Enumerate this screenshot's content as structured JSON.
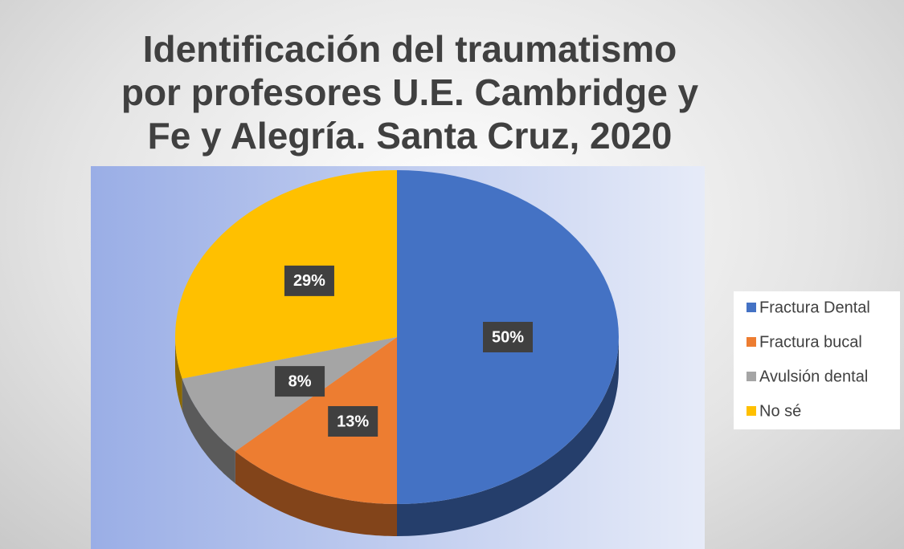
{
  "chart_data": {
    "type": "pie",
    "title": "Identificación del traumatismo por profesores U.E. Cambridge y Fe y Alegría. Santa Cruz, 2020",
    "categories": [
      "Fractura Dental",
      "Fractura bucal",
      "Avulsión dental",
      "No sé"
    ],
    "values": [
      50,
      13,
      8,
      29
    ],
    "value_labels": [
      "50%",
      "13%",
      "8%",
      "29%"
    ],
    "colors": [
      "#4472c4",
      "#ed7d31",
      "#a5a5a5",
      "#ffc000"
    ],
    "legend": "right"
  }
}
